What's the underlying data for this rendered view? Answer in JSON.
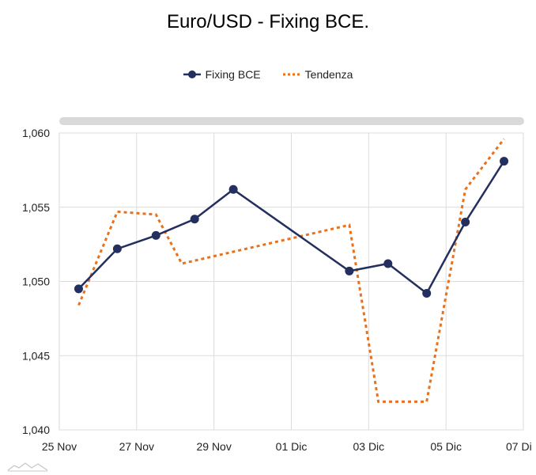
{
  "chart_data": {
    "type": "line",
    "title": "Euro/USD - Fixing BCE.",
    "x": [
      "2022-11-25T12:00",
      "2022-11-26T12:00",
      "2022-11-27T12:00",
      "2022-11-28T12:00",
      "2022-11-29T12:00",
      "2022-12-02T12:00",
      "2022-12-03T12:00",
      "2022-12-04T12:00",
      "2022-12-05T12:00",
      "2022-12-06T12:00"
    ],
    "series": [
      {
        "name": "Fixing BCE",
        "style": "solid-markers",
        "color": "#232f5e",
        "values": [
          1.0495,
          1.0522,
          1.0531,
          1.0542,
          1.0562,
          1.0507,
          1.0512,
          1.0492,
          1.054,
          1.0581
        ]
      },
      {
        "name": "Tendenza",
        "style": "dotted",
        "color": "#e8711c",
        "points": [
          [
            "2022-11-25T12:00",
            1.0484
          ],
          [
            "2022-11-26T12:00",
            1.0547
          ],
          [
            "2022-11-27T12:00",
            1.0545
          ],
          [
            "2022-11-28T04:00",
            1.0512
          ],
          [
            "2022-12-02T12:00",
            1.0538
          ],
          [
            "2022-12-03T06:00",
            1.0419
          ],
          [
            "2022-12-04T12:00",
            1.0419
          ],
          [
            "2022-12-05T12:00",
            1.0562
          ],
          [
            "2022-12-06T12:00",
            1.0596
          ]
        ]
      }
    ],
    "x_ticks": [
      "25 Nov",
      "27 Nov",
      "29 Nov",
      "01 Dic",
      "03 Dic",
      "05 Dic",
      "07 Di"
    ],
    "x_tick_dates": [
      "2022-11-25",
      "2022-11-27",
      "2022-11-29",
      "2022-12-01",
      "2022-12-03",
      "2022-12-05",
      "2022-12-07"
    ],
    "y_ticks": [
      "1,040",
      "1,045",
      "1,050",
      "1,055",
      "1,060"
    ],
    "y_tick_values": [
      1.04,
      1.045,
      1.05,
      1.055,
      1.06
    ],
    "xlim": [
      "2022-11-25",
      "2022-12-07"
    ],
    "ylim": [
      1.04,
      1.06
    ],
    "grid": true,
    "legend_position": "top-center",
    "scrollbar": "top"
  }
}
